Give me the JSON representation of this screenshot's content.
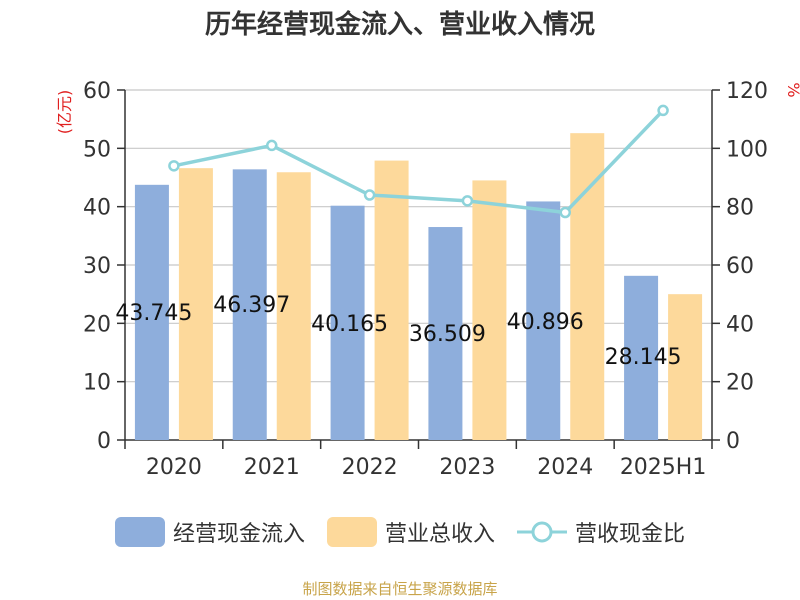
{
  "title": "历年经营现金流入、营业收入情况",
  "source": "制图数据来自恒生聚源数据库",
  "chart_data": {
    "type": "bar",
    "categories": [
      "2020",
      "2021",
      "2022",
      "2023",
      "2024",
      "2025H1"
    ],
    "left_axis_label": "(亿元)",
    "right_axis_label": "%",
    "left_ylim": [
      0,
      60
    ],
    "left_ticks": [
      0,
      10,
      20,
      30,
      40,
      50,
      60
    ],
    "right_ylim": [
      0,
      120
    ],
    "right_ticks": [
      0,
      20,
      40,
      60,
      80,
      100,
      120
    ],
    "grid": true,
    "legend_position": "bottom",
    "series": [
      {
        "name": "经营现金流入",
        "type": "bar",
        "axis": "left",
        "color": "#8eaedc",
        "values": [
          43.745,
          46.397,
          40.165,
          36.509,
          40.896,
          28.145
        ],
        "value_labels": [
          "43.745",
          "46.397",
          "40.165",
          "36.509",
          "40.896",
          "28.145"
        ]
      },
      {
        "name": "营业总收入",
        "type": "bar",
        "axis": "left",
        "color": "#fdd99b",
        "values": [
          46.6,
          45.9,
          47.9,
          44.5,
          52.6,
          25.0
        ]
      },
      {
        "name": "营收现金比",
        "type": "line",
        "axis": "right",
        "color": "#8dd3da",
        "values": [
          94,
          101,
          84,
          82,
          78,
          113
        ]
      }
    ]
  },
  "legend": [
    {
      "label": "经营现金流入",
      "color": "#8eaedc",
      "icon": "bar-swatch"
    },
    {
      "label": "营业总收入",
      "color": "#fdd99b",
      "icon": "bar-swatch"
    },
    {
      "label": "营收现金比",
      "color": "#8dd3da",
      "icon": "line-circle-swatch"
    }
  ]
}
